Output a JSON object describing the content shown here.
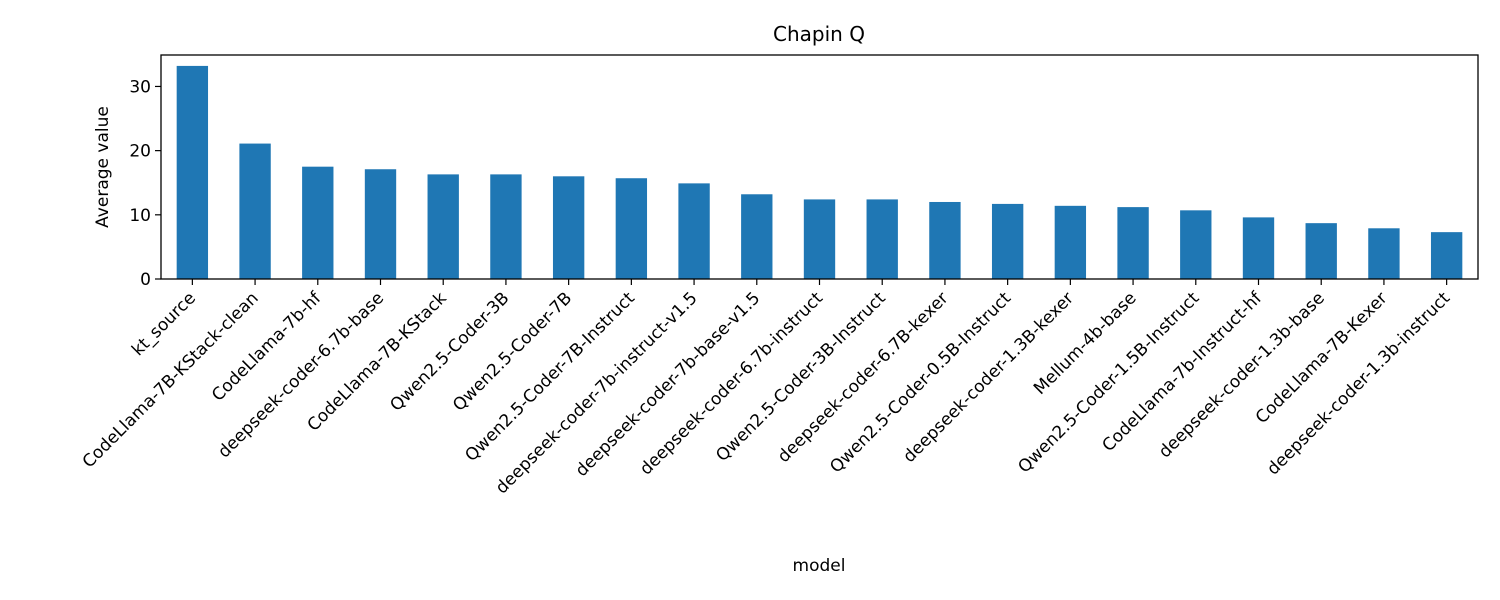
{
  "chart_data": {
    "type": "bar",
    "title": "Chapin Q",
    "xlabel": "model",
    "ylabel": "Average value",
    "ylim": [
      0,
      34.9
    ],
    "yticks": [
      0,
      10,
      20,
      30
    ],
    "grid": false,
    "legend": "none",
    "bar_color": "#1f77b4",
    "categories": [
      "kt_source",
      "CodeLlama-7B-KStack-clean",
      "CodeLlama-7b-hf",
      "deepseek-coder-6.7b-base",
      "CodeLlama-7B-KStack",
      "Qwen2.5-Coder-3B",
      "Qwen2.5-Coder-7B",
      "Qwen2.5-Coder-7B-Instruct",
      "deepseek-coder-7b-instruct-v1.5",
      "deepseek-coder-7b-base-v1.5",
      "deepseek-coder-6.7b-instruct",
      "Qwen2.5-Coder-3B-Instruct",
      "deepseek-coder-6.7B-kexer",
      "Qwen2.5-Coder-0.5B-Instruct",
      "deepseek-coder-1.3B-kexer",
      "Mellum-4b-base",
      "Qwen2.5-Coder-1.5B-Instruct",
      "CodeLlama-7b-Instruct-hf",
      "deepseek-coder-1.3b-base",
      "CodeLlama-7B-Kexer",
      "deepseek-coder-1.3b-instruct"
    ],
    "values": [
      33.2,
      21.1,
      17.5,
      17.1,
      16.3,
      16.3,
      16.0,
      15.7,
      14.9,
      13.2,
      12.4,
      12.4,
      12.0,
      11.7,
      11.4,
      11.2,
      10.7,
      9.6,
      8.7,
      7.9,
      7.3
    ]
  }
}
